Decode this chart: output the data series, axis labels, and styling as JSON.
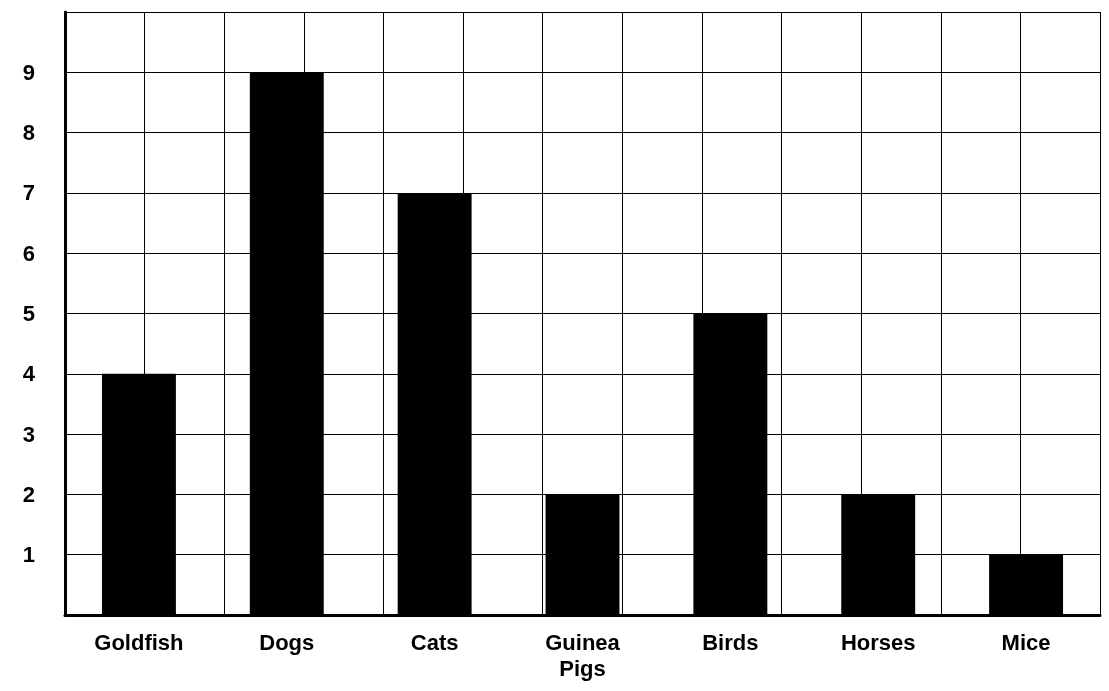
{
  "chart_data": {
    "type": "bar",
    "categories": [
      "Goldfish",
      "Dogs",
      "Cats",
      "Guinea\nPigs",
      "Birds",
      "Horses",
      "Mice"
    ],
    "values": [
      4,
      9,
      7,
      2,
      5,
      2,
      1
    ],
    "color": "#000000",
    "ylim": [
      0,
      10
    ],
    "yticks": [
      1,
      2,
      3,
      4,
      5,
      6,
      7,
      8,
      9,
      {
        "value": 10,
        "label": null
      }
    ],
    "grid": true
  }
}
